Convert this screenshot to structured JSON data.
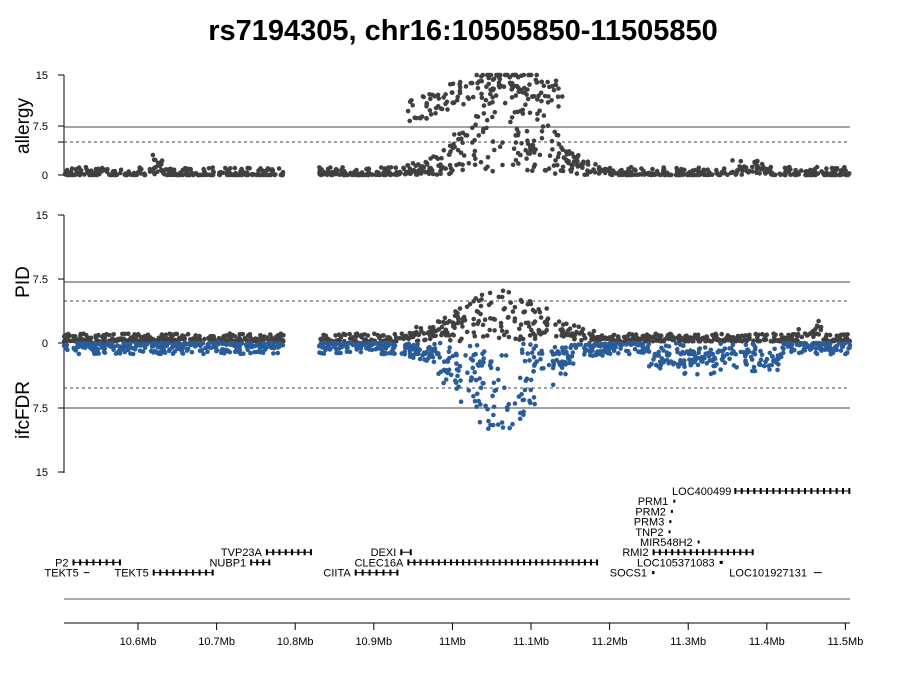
{
  "chart_data": {
    "type": "scatter",
    "title": "rs7194305, chr16:10505850-11505850",
    "x_range_mb": [
      10.50585,
      11.50585
    ],
    "x_ticks": [
      "10.6Mb",
      "10.7Mb",
      "10.8Mb",
      "10.9Mb",
      "11Mb",
      "11.1Mb",
      "11.2Mb",
      "11.3Mb",
      "11.4Mb",
      "11.5Mb"
    ],
    "x_tick_values": [
      10.6,
      10.7,
      10.8,
      10.9,
      11.0,
      11.1,
      11.2,
      11.3,
      11.4,
      11.5
    ],
    "panels": [
      {
        "ylabel": "allergy",
        "y_ticks": [
          "15",
          "7.5",
          "5",
          "0"
        ],
        "y_tick_values": [
          15,
          7.5,
          5,
          0
        ],
        "ylim": [
          0,
          15
        ],
        "threshold_solid": 7.5,
        "threshold_dashed": 5,
        "color": "#404040"
      },
      {
        "ylabel_top": "PID",
        "ylabel_bottom": "ifcFDR",
        "y_ticks": [
          "15",
          "7.5",
          "0",
          "7.5",
          "15"
        ],
        "ylim": [
          -15,
          15
        ],
        "threshold_solid": 7.5,
        "threshold_dashed": 5,
        "color_top": "#404040",
        "color_bottom": "#2b5c9a"
      }
    ],
    "gene_track": {
      "genes": [
        {
          "name": "LOC400499",
          "start": 11.36,
          "end": 11.505,
          "row": 0
        },
        {
          "name": "PRM1",
          "start": 11.281,
          "end": 11.282,
          "row": 1
        },
        {
          "name": "PRM2",
          "start": 11.278,
          "end": 11.279,
          "row": 2
        },
        {
          "name": "PRM3",
          "start": 11.276,
          "end": 11.277,
          "row": 3
        },
        {
          "name": "TNP2",
          "start": 11.275,
          "end": 11.276,
          "row": 4
        },
        {
          "name": "MIR548H2",
          "start": 11.312,
          "end": 11.313,
          "row": 5
        },
        {
          "name": "RMI2",
          "start": 11.256,
          "end": 11.382,
          "row": 6
        },
        {
          "name": "TVP23A",
          "start": 10.764,
          "end": 10.82,
          "row": 6
        },
        {
          "name": "DEXI",
          "start": 10.935,
          "end": 10.947,
          "row": 6
        },
        {
          "name": "P2",
          "start": 10.518,
          "end": 10.577,
          "row": 7
        },
        {
          "name": "NUBP1",
          "start": 10.744,
          "end": 10.767,
          "row": 7
        },
        {
          "name": "CLEC16A",
          "start": 10.944,
          "end": 11.184,
          "row": 7
        },
        {
          "name": "LOC105371083",
          "start": 11.34,
          "end": 11.344,
          "row": 7
        },
        {
          "name": "TEKT5",
          "start": 10.531,
          "end": 10.538,
          "row": 8
        },
        {
          "name": "TEKT5",
          "start": 10.62,
          "end": 10.695,
          "row": 8
        },
        {
          "name": "CIITA",
          "start": 10.877,
          "end": 10.93,
          "row": 8
        },
        {
          "name": "SOCS1",
          "start": 11.254,
          "end": 11.257,
          "row": 8
        },
        {
          "name": "LOC101927131",
          "start": 11.46,
          "end": 11.47,
          "row": 8
        }
      ]
    }
  }
}
